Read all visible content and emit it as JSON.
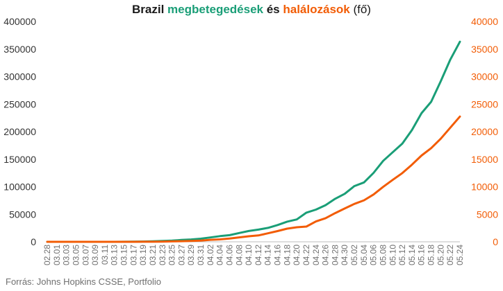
{
  "title": {
    "part1": "Brazil ",
    "part2": "megbetegedések",
    "part3": " és ",
    "part4": "halálozások",
    "part5": " (fő)"
  },
  "source": "Forrás: Johns Hopkins CSSE, Portfolio",
  "colors": {
    "cases": "#1a9e77",
    "deaths": "#f25c05",
    "left_axis_text": "#333333"
  },
  "chart_data": {
    "type": "line",
    "title": "Brazil megbetegedések és halálozások (fő)",
    "xlabel": "",
    "ylabel": "",
    "ylim_left": [
      0,
      400000
    ],
    "ylim_right": [
      0,
      40000
    ],
    "yticks_left": [
      "0",
      "50000",
      "100000",
      "150000",
      "200000",
      "250000",
      "300000",
      "350000",
      "400000"
    ],
    "yticks_right": [
      "0",
      "5000",
      "10000",
      "15000",
      "20000",
      "25000",
      "30000",
      "35000",
      "40000"
    ],
    "x_tick_labels": [
      "02.28",
      "03.01",
      "03.03",
      "03.05",
      "03.07",
      "03.09",
      "03.11",
      "03.13",
      "03.15",
      "03.17",
      "03.19",
      "03.21",
      "03.23",
      "03.25",
      "03.27",
      "03.29",
      "03.31",
      "04.02",
      "04.04",
      "04.06",
      "04.08",
      "04.10",
      "04.12",
      "04.14",
      "04.16",
      "04.18",
      "04.20",
      "04.22",
      "04.24",
      "04.26",
      "04.28",
      "04.30",
      "05.02",
      "05.04",
      "05.06",
      "05.08",
      "05.10",
      "05.12",
      "05.14",
      "05.16",
      "05.18",
      "05.20",
      "05.22",
      "05.24"
    ],
    "grid": false,
    "legend": "none",
    "series": [
      {
        "name": "megbetegedések",
        "axis": "left",
        "values": [
          1,
          1,
          2,
          2,
          8,
          13,
          25,
          52,
          121,
          200,
          529,
          904,
          1546,
          2201,
          3417,
          4256,
          5717,
          7910,
          10278,
          12056,
          15927,
          19638,
          22192,
          25262,
          30425,
          36599,
          40581,
          52995,
          58509,
          66501,
          78162,
          87187,
          101147,
          107780,
          125218,
          146894,
          162699,
          178214,
          202918,
          233511,
          254220,
          291579,
          330890,
          363211
        ],
        "x_dates": [
          "02.28",
          "03.01",
          "03.03",
          "03.05",
          "03.07",
          "03.09",
          "03.11",
          "03.13",
          "03.15",
          "03.17",
          "03.19",
          "03.21",
          "03.23",
          "03.25",
          "03.27",
          "03.29",
          "03.31",
          "04.02",
          "04.04",
          "04.06",
          "04.08",
          "04.10",
          "04.12",
          "04.14",
          "04.16",
          "04.18",
          "04.20",
          "04.22",
          "04.24",
          "04.26",
          "04.28",
          "04.30",
          "05.02",
          "05.04",
          "05.06",
          "05.08",
          "05.10",
          "05.12",
          "05.14",
          "05.16",
          "05.18",
          "05.20",
          "05.22",
          "05.24"
        ]
      },
      {
        "name": "halálozások",
        "axis": "right",
        "values": [
          0,
          0,
          0,
          0,
          0,
          0,
          0,
          0,
          0,
          1,
          7,
          18,
          36,
          80,
          111,
          159,
          213,
          359,
          445,
          591,
          803,
          1002,
          1153,
          1546,
          1952,
          2388,
          2639,
          2770,
          3701,
          4287,
          5208,
          6045,
          6883,
          7539,
          8588,
          9973,
          11251,
          12484,
          14000,
          15662,
          17000,
          18722,
          20730,
          22746
        ],
        "x_dates": [
          "02.28",
          "03.01",
          "03.03",
          "03.05",
          "03.07",
          "03.09",
          "03.11",
          "03.13",
          "03.15",
          "03.17",
          "03.19",
          "03.21",
          "03.23",
          "03.25",
          "03.27",
          "03.29",
          "03.31",
          "04.02",
          "04.04",
          "04.06",
          "04.08",
          "04.10",
          "04.12",
          "04.14",
          "04.16",
          "04.18",
          "04.20",
          "04.22",
          "04.24",
          "04.26",
          "04.28",
          "04.30",
          "05.02",
          "05.04",
          "05.06",
          "05.08",
          "05.10",
          "05.12",
          "05.14",
          "05.16",
          "05.18",
          "05.20",
          "05.22",
          "05.24"
        ]
      }
    ]
  }
}
